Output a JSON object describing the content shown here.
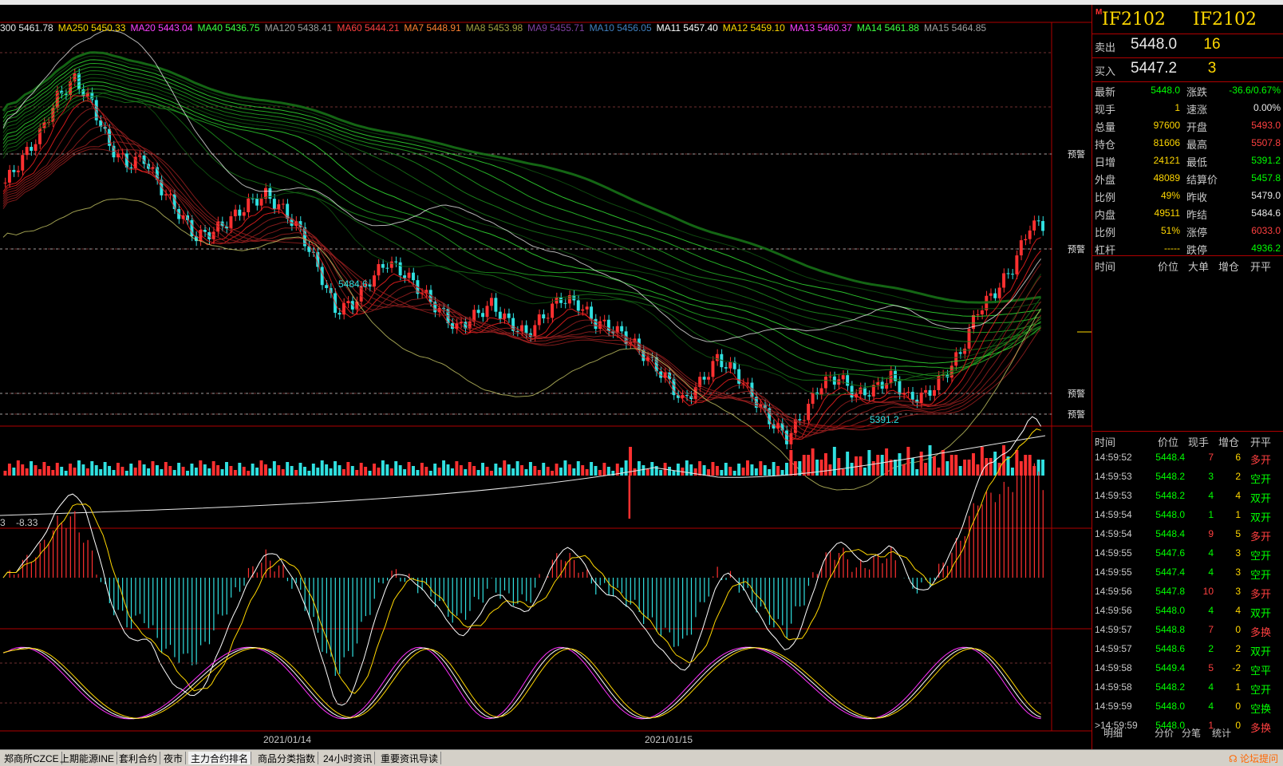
{
  "symbol": {
    "name_left": "IF2102",
    "name_right": "IF2102",
    "marker": "M"
  },
  "quote": {
    "sell": {
      "label": "卖出",
      "price": "5448.0",
      "vol": "16"
    },
    "buy": {
      "label": "买入",
      "price": "5447.2",
      "vol": "3"
    }
  },
  "info": [
    {
      "l1": "最新",
      "v1": "5448.0",
      "c1": "#00ff00",
      "l2": "涨跌",
      "v2": "-36.6/0.67%",
      "c2": "#00ff00"
    },
    {
      "l1": "现手",
      "v1": "1",
      "c1": "#ffd700",
      "l2": "速涨",
      "v2": "0.00%",
      "c2": "#e8e8e8"
    },
    {
      "l1": "总量",
      "v1": "97600",
      "c1": "#ffd700",
      "l2": "开盘",
      "v2": "5493.0",
      "c2": "#ff4040"
    },
    {
      "l1": "持仓",
      "v1": "81606",
      "c1": "#ffd700",
      "l2": "最高",
      "v2": "5507.8",
      "c2": "#ff4040"
    },
    {
      "l1": "日增",
      "v1": "24121",
      "c1": "#ffd700",
      "l2": "最低",
      "v2": "5391.2",
      "c2": "#00ff00"
    },
    {
      "l1": "外盘",
      "v1": "48089",
      "c1": "#ffd700",
      "l2": "结算价",
      "v2": "5457.8",
      "c2": "#00ff00"
    },
    {
      "l1": "比例",
      "v1": "49%",
      "c1": "#ffd700",
      "l2": "昨收",
      "v2": "5479.0",
      "c2": "#e8e8e8"
    },
    {
      "l1": "内盘",
      "v1": "49511",
      "c1": "#ffd700",
      "l2": "昨结",
      "v2": "5484.6",
      "c2": "#e8e8e8"
    },
    {
      "l1": "比例",
      "v1": "51%",
      "c1": "#ffd700",
      "l2": "涨停",
      "v2": "6033.0",
      "c2": "#ff4040"
    },
    {
      "l1": "杠杆",
      "v1": "-----",
      "c1": "#ffd700",
      "l2": "跌停",
      "v2": "4936.2",
      "c2": "#00ff00"
    }
  ],
  "header1": {
    "time": "时间",
    "price": "价位",
    "big": "大单",
    "oi": "增仓",
    "oc": "开平"
  },
  "header2": {
    "time": "时间",
    "price": "价位",
    "vol": "现手",
    "oi": "增仓",
    "oc": "开平"
  },
  "ticks": [
    {
      "time": "14:59:52",
      "price": "5448.4",
      "vol": "7",
      "vc": "#ff4040",
      "oi": "6",
      "type": "多开",
      "tc": "#ff4040"
    },
    {
      "time": "14:59:53",
      "price": "5448.2",
      "vol": "3",
      "vc": "#00ff00",
      "oi": "2",
      "type": "空开",
      "tc": "#00ff00"
    },
    {
      "time": "14:59:53",
      "price": "5448.2",
      "vol": "4",
      "vc": "#00ff00",
      "oi": "4",
      "type": "双开",
      "tc": "#00ff00"
    },
    {
      "time": "14:59:54",
      "price": "5448.0",
      "vol": "1",
      "vc": "#00ff00",
      "oi": "1",
      "type": "双开",
      "tc": "#00ff00"
    },
    {
      "time": "14:59:54",
      "price": "5448.4",
      "vol": "9",
      "vc": "#ff4040",
      "oi": "5",
      "type": "多开",
      "tc": "#ff4040"
    },
    {
      "time": "14:59:55",
      "price": "5447.6",
      "vol": "4",
      "vc": "#00ff00",
      "oi": "3",
      "type": "空开",
      "tc": "#00ff00"
    },
    {
      "time": "14:59:55",
      "price": "5447.4",
      "vol": "4",
      "vc": "#00ff00",
      "oi": "3",
      "type": "空开",
      "tc": "#00ff00"
    },
    {
      "time": "14:59:56",
      "price": "5447.8",
      "vol": "10",
      "vc": "#ff4040",
      "oi": "3",
      "type": "多开",
      "tc": "#ff4040"
    },
    {
      "time": "14:59:56",
      "price": "5448.0",
      "vol": "4",
      "vc": "#00ff00",
      "oi": "4",
      "type": "双开",
      "tc": "#00ff00"
    },
    {
      "time": "14:59:57",
      "price": "5448.8",
      "vol": "7",
      "vc": "#ff4040",
      "oi": "0",
      "type": "多换",
      "tc": "#ff4040"
    },
    {
      "time": "14:59:57",
      "price": "5448.6",
      "vol": "2",
      "vc": "#00ff00",
      "oi": "2",
      "type": "双开",
      "tc": "#00ff00"
    },
    {
      "time": "14:59:58",
      "price": "5449.4",
      "vol": "5",
      "vc": "#ff4040",
      "oi": "-2",
      "type": "空平",
      "tc": "#00ff00"
    },
    {
      "time": "14:59:58",
      "price": "5448.2",
      "vol": "4",
      "vc": "#00ff00",
      "oi": "1",
      "type": "空开",
      "tc": "#00ff00"
    },
    {
      "time": "14:59:59",
      "price": "5448.0",
      "vol": "4",
      "vc": "#00ff00",
      "oi": "0",
      "type": "空换",
      "tc": "#00ff00"
    },
    {
      "time": ">14:59:59",
      "price": "5448.0",
      "vol": "1",
      "vc": "#ff4040",
      "oi": "0",
      "type": "多换",
      "tc": "#ff4040"
    }
  ],
  "panel_tabs": [
    "明细",
    "分价",
    "分笔",
    "统计"
  ],
  "ma_legend": [
    {
      "text": "300 5461.78",
      "color": "#e8e8e8"
    },
    {
      "text": "MA250 5450.33",
      "color": "#ffd700"
    },
    {
      "text": "MA20 5443.04",
      "color": "#ff40ff"
    },
    {
      "text": "MA40 5436.75",
      "color": "#40ff40"
    },
    {
      "text": "MA120 5438.41",
      "color": "#a0a0a0"
    },
    {
      "text": "MA60 5444.21",
      "color": "#ff4040"
    },
    {
      "text": "MA7 5448.91",
      "color": "#ff8030"
    },
    {
      "text": "MA8 5453.98",
      "color": "#a0a040"
    },
    {
      "text": "MA9 5455.71",
      "color": "#8040a0"
    },
    {
      "text": "MA10 5456.05",
      "color": "#4080c0"
    },
    {
      "text": "MA11 5457.40",
      "color": "#ffffff"
    },
    {
      "text": "MA12 5459.10",
      "color": "#ffd700"
    },
    {
      "text": "MA13 5460.37",
      "color": "#ff40ff"
    },
    {
      "text": "MA14 5461.88",
      "color": "#40ff40"
    },
    {
      "text": "MA15 5464.85",
      "color": "#a0a0a0"
    }
  ],
  "price_labels": {
    "low1": "5484.6",
    "low2": "5391.2",
    "warn": "预警"
  },
  "macd_values": [
    "3",
    "-8.33"
  ],
  "dates": [
    "2021/01/14",
    "2021/01/15"
  ],
  "bottom_tabs": [
    "郑商所CZCE",
    "上期能源INE",
    "套利合约",
    "夜市",
    "主力合约排名",
    "商品分类指数",
    "24小时资讯",
    "重要资讯导读"
  ],
  "bottom_active": 4,
  "forum_link": "论坛提问",
  "chart_data": {
    "type": "line",
    "title": "",
    "close_series": [
      5462,
      5470,
      5478,
      5490,
      5496,
      5488,
      5474,
      5468,
      5470,
      5460,
      5452,
      5444,
      5446,
      5450,
      5455,
      5458,
      5453,
      5446,
      5434,
      5420,
      5422,
      5430,
      5436,
      5432,
      5426,
      5420,
      5414,
      5418,
      5422,
      5416,
      5412,
      5418,
      5424,
      5422,
      5416,
      5414,
      5410,
      5404,
      5398,
      5390,
      5396,
      5404,
      5400,
      5392,
      5384,
      5378,
      5386,
      5396,
      5398,
      5392,
      5394,
      5398,
      5391,
      5392,
      5398,
      5406,
      5420,
      5426,
      5434,
      5448
    ],
    "price_range": [
      5384,
      5510
    ],
    "macd_range": [
      -12,
      10
    ]
  }
}
